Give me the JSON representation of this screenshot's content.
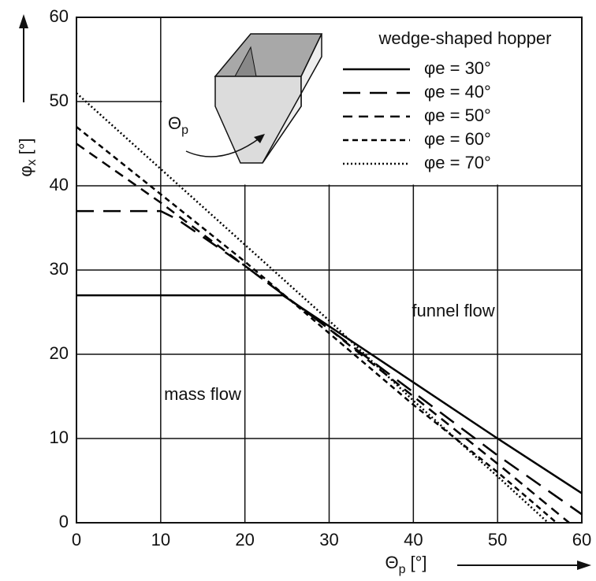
{
  "chart_data": {
    "type": "line",
    "y_label": {
      "symbol": "φ",
      "subscript": "x",
      "unit": "[°]"
    },
    "x_label": {
      "symbol": "Θ",
      "subscript": "p",
      "unit": "[°]"
    },
    "legend_title": "wedge-shaped hopper",
    "annotations": [
      "mass flow",
      "funnel flow"
    ],
    "inset_label": {
      "symbol": "Θ",
      "subscript": "p"
    },
    "xlim": [
      0,
      60
    ],
    "ylim": [
      0,
      60
    ],
    "xticks": [
      0,
      10,
      20,
      30,
      40,
      50,
      60
    ],
    "yticks": [
      0,
      10,
      20,
      30,
      40,
      50,
      60
    ],
    "grid": true,
    "series": [
      {
        "name": "φe = 30°",
        "color": "#000000",
        "dash": "none",
        "x": [
          0,
          24.5,
          50,
          60
        ],
        "values": [
          27,
          27,
          10,
          3.5
        ]
      },
      {
        "name": "φe = 40°",
        "color": "#000000",
        "dash": "22,12",
        "x": [
          0,
          10,
          12,
          20,
          30,
          40,
          50,
          60
        ],
        "values": [
          37,
          37,
          36,
          30.5,
          23,
          15.5,
          8,
          1
        ]
      },
      {
        "name": "φe = 50°",
        "color": "#000000",
        "dash": "12,8",
        "x": [
          0,
          10,
          20,
          30,
          40,
          50,
          58.5
        ],
        "values": [
          45,
          38,
          30.5,
          23,
          15,
          7,
          0
        ]
      },
      {
        "name": "φe = 60°",
        "color": "#000000",
        "dash": "7,5",
        "x": [
          0,
          10,
          20,
          30,
          40,
          50,
          57
        ],
        "values": [
          47,
          39,
          31,
          22.5,
          14,
          6,
          0
        ]
      },
      {
        "name": "φe = 70°",
        "color": "#000000",
        "dash": "2,3",
        "x": [
          0,
          10,
          20,
          30,
          40,
          50,
          56
        ],
        "values": [
          51,
          42,
          33,
          24,
          14.5,
          5.5,
          0
        ]
      }
    ]
  }
}
